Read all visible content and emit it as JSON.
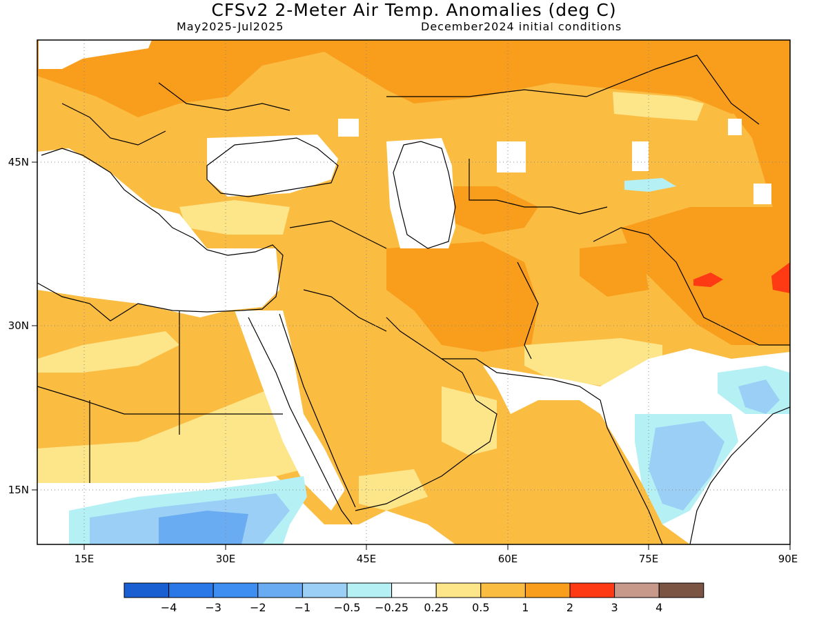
{
  "title": "CFSv2 2-Meter Air Temp. Anomalies (deg C)",
  "subtitle_left": "May2025-Jul2025",
  "subtitle_right": "December2024 initial conditions",
  "map": {
    "lon_range": [
      10,
      90
    ],
    "lat_range": [
      10,
      55
    ],
    "projection": "equirectangular",
    "grid": "dotted",
    "x_ticks": [
      {
        "value": 15,
        "label": "15E"
      },
      {
        "value": 30,
        "label": "30E"
      },
      {
        "value": 45,
        "label": "45E"
      },
      {
        "value": 60,
        "label": "60E"
      },
      {
        "value": 75,
        "label": "75E"
      },
      {
        "value": 90,
        "label": "90E"
      }
    ],
    "y_ticks": [
      {
        "value": 45,
        "label": "45N"
      },
      {
        "value": 30,
        "label": "30N"
      },
      {
        "value": 15,
        "label": "15N"
      }
    ]
  },
  "colorbar": {
    "colors": [
      "#1a5fd1",
      "#2a77e8",
      "#3d8ef0",
      "#6aacf2",
      "#9ccff6",
      "#b4f0f4",
      "#ffffff",
      "#fde58a",
      "#fbbc42",
      "#f99d1c",
      "#fe3a14",
      "#c6998b",
      "#7b5443"
    ],
    "labels": [
      "−4",
      "−3",
      "−2",
      "−1",
      "−0.5",
      "−0.25",
      "0.25",
      "0.5",
      "1",
      "2",
      "3",
      "4"
    ]
  }
}
